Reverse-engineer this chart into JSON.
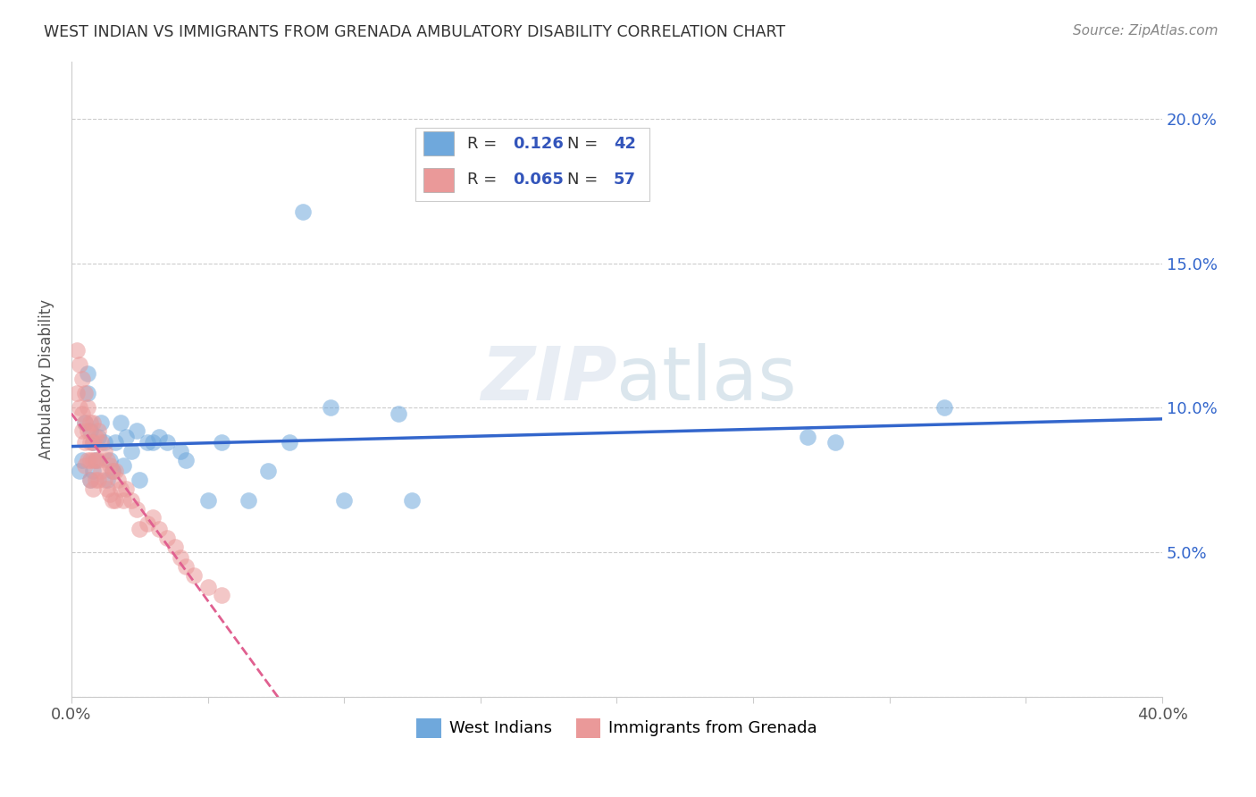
{
  "title": "WEST INDIAN VS IMMIGRANTS FROM GRENADA AMBULATORY DISABILITY CORRELATION CHART",
  "source": "Source: ZipAtlas.com",
  "ylabel": "Ambulatory Disability",
  "xlim": [
    0.0,
    0.4
  ],
  "ylim": [
    0.0,
    0.22
  ],
  "grid_color": "#cccccc",
  "background_color": "#ffffff",
  "blue_color": "#6fa8dc",
  "pink_color": "#ea9999",
  "line_blue": "#3366cc",
  "line_pink": "#e06090",
  "legend_R1": "0.126",
  "legend_N1": "42",
  "legend_R2": "0.065",
  "legend_N2": "57",
  "watermark": "ZIPatlas",
  "west_indians_x": [
    0.003,
    0.004,
    0.005,
    0.006,
    0.006,
    0.007,
    0.007,
    0.008,
    0.008,
    0.009,
    0.01,
    0.011,
    0.012,
    0.013,
    0.014,
    0.015,
    0.016,
    0.018,
    0.019,
    0.02,
    0.022,
    0.024,
    0.025,
    0.028,
    0.03,
    0.032,
    0.035,
    0.04,
    0.042,
    0.05,
    0.055,
    0.065,
    0.072,
    0.08,
    0.085,
    0.095,
    0.1,
    0.12,
    0.125,
    0.27,
    0.28,
    0.32
  ],
  "west_indians_y": [
    0.078,
    0.082,
    0.095,
    0.105,
    0.112,
    0.075,
    0.092,
    0.078,
    0.088,
    0.082,
    0.09,
    0.095,
    0.088,
    0.075,
    0.082,
    0.078,
    0.088,
    0.095,
    0.08,
    0.09,
    0.085,
    0.092,
    0.075,
    0.088,
    0.088,
    0.09,
    0.088,
    0.085,
    0.082,
    0.068,
    0.088,
    0.068,
    0.078,
    0.088,
    0.168,
    0.1,
    0.068,
    0.098,
    0.068,
    0.09,
    0.088,
    0.1
  ],
  "grenada_x": [
    0.002,
    0.002,
    0.003,
    0.003,
    0.004,
    0.004,
    0.004,
    0.005,
    0.005,
    0.005,
    0.005,
    0.006,
    0.006,
    0.006,
    0.007,
    0.007,
    0.007,
    0.007,
    0.008,
    0.008,
    0.008,
    0.008,
    0.009,
    0.009,
    0.009,
    0.01,
    0.01,
    0.01,
    0.011,
    0.011,
    0.012,
    0.012,
    0.013,
    0.013,
    0.014,
    0.014,
    0.015,
    0.015,
    0.016,
    0.016,
    0.017,
    0.018,
    0.019,
    0.02,
    0.022,
    0.024,
    0.025,
    0.028,
    0.03,
    0.032,
    0.035,
    0.038,
    0.04,
    0.042,
    0.045,
    0.05,
    0.055
  ],
  "grenada_y": [
    0.12,
    0.105,
    0.115,
    0.1,
    0.11,
    0.098,
    0.092,
    0.105,
    0.095,
    0.088,
    0.08,
    0.1,
    0.092,
    0.082,
    0.095,
    0.088,
    0.082,
    0.075,
    0.095,
    0.088,
    0.082,
    0.072,
    0.09,
    0.082,
    0.075,
    0.092,
    0.082,
    0.075,
    0.088,
    0.078,
    0.085,
    0.075,
    0.082,
    0.072,
    0.08,
    0.07,
    0.078,
    0.068,
    0.078,
    0.068,
    0.075,
    0.072,
    0.068,
    0.072,
    0.068,
    0.065,
    0.058,
    0.06,
    0.062,
    0.058,
    0.055,
    0.052,
    0.048,
    0.045,
    0.042,
    0.038,
    0.035
  ]
}
